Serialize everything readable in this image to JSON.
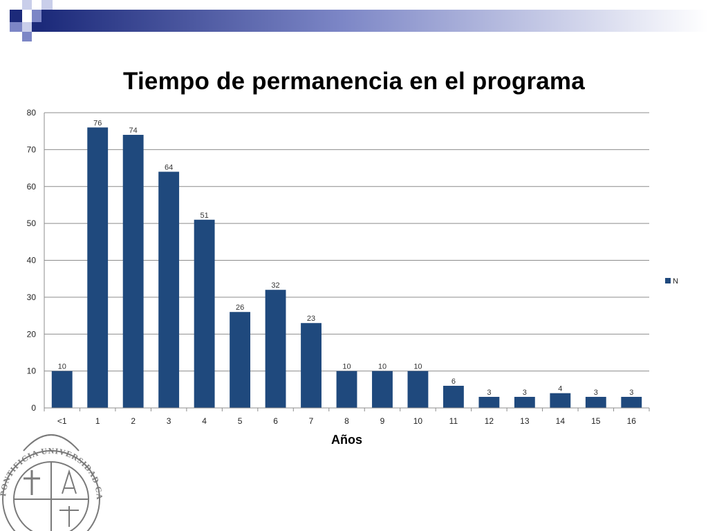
{
  "colors": {
    "bar": "#1F497D",
    "grid": "#8C8C8C",
    "band_dark": "#1C2A7A",
    "band_mid": "#7C86C6",
    "band_light": "#C9CEEA",
    "seal": "#7A7A7A"
  },
  "slide": {
    "title": "Tiempo de permanencia en el programa"
  },
  "logo": {
    "text": "PONTIFICIA UNIVERSIDAD CATOLICA"
  },
  "chart_data": {
    "type": "bar",
    "title": "Tiempo de permanencia en el programa",
    "xlabel": "Años",
    "ylabel": "",
    "categories": [
      "<1",
      "1",
      "2",
      "3",
      "4",
      "5",
      "6",
      "7",
      "8",
      "9",
      "10",
      "11",
      "12",
      "13",
      "14",
      "15",
      "16"
    ],
    "series": [
      {
        "name": "N",
        "values": [
          10,
          76,
          74,
          64,
          51,
          26,
          32,
          23,
          10,
          10,
          10,
          6,
          3,
          3,
          4,
          3,
          3
        ]
      }
    ],
    "ylim": [
      0,
      80
    ],
    "yticks": [
      0,
      10,
      20,
      30,
      40,
      50,
      60,
      70,
      80
    ],
    "grid": true,
    "legend": "right",
    "data_labels": true
  }
}
